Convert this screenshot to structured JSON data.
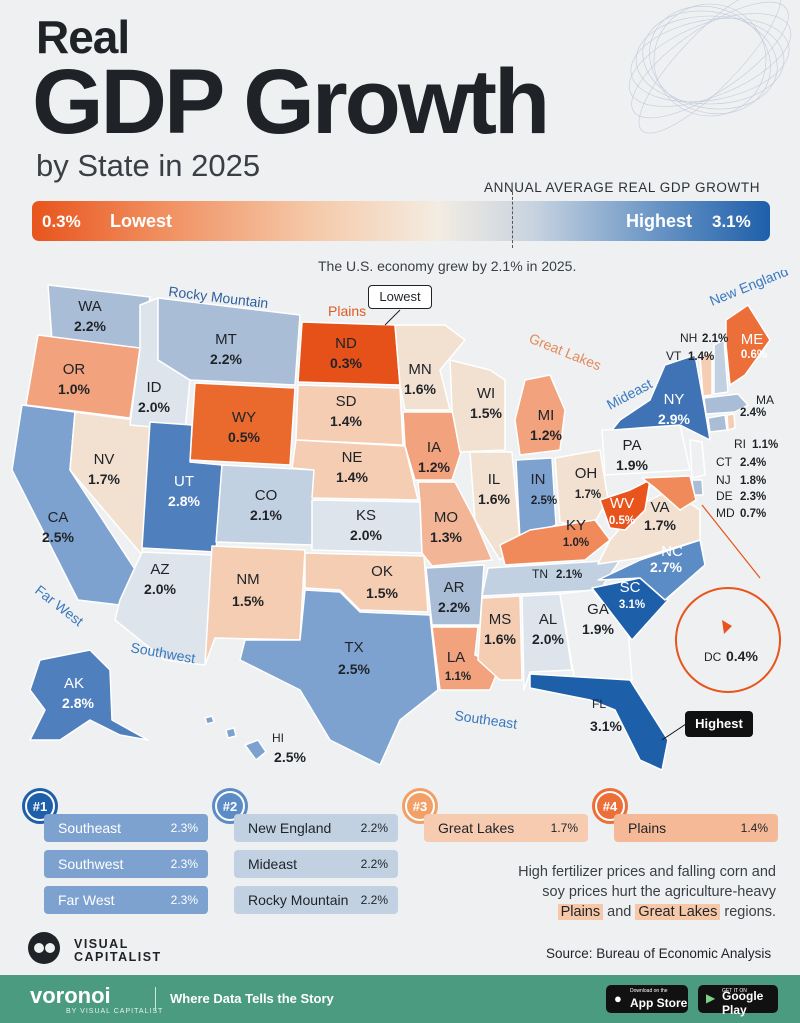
{
  "title": {
    "line1": "Real",
    "line2": "GDP Growth",
    "line3": "by State in 2025"
  },
  "legend": {
    "heading": "ANNUAL AVERAGE REAL GDP GROWTH",
    "low_value": "0.3%",
    "low_label": "Lowest",
    "high_label": "Highest",
    "high_value": "3.1%",
    "colors": {
      "low": "#e8541c",
      "mid": "#f4ece2",
      "high": "#1e5faa"
    }
  },
  "note_top": "The U.S. economy grew by 2.1% in 2025.",
  "callouts": {
    "lowest": "Lowest",
    "highest": "Highest"
  },
  "regions": {
    "rocky_mountain": "Rocky Mountain",
    "plains": "Plains",
    "great_lakes": "Great Lakes",
    "new_england": "New England",
    "mideast": "Mideast",
    "far_west": "Far West",
    "southwest": "Southwest",
    "southeast": "Southeast"
  },
  "states": {
    "WA": "2.2%",
    "OR": "1.0%",
    "CA": "2.5%",
    "NV": "1.7%",
    "ID": "2.0%",
    "MT": "2.2%",
    "WY": "0.5%",
    "UT": "2.8%",
    "CO": "2.1%",
    "AZ": "2.0%",
    "NM": "1.5%",
    "ND": "0.3%",
    "SD": "1.4%",
    "NE": "1.4%",
    "KS": "2.0%",
    "OK": "1.5%",
    "TX": "2.5%",
    "MN": "1.6%",
    "IA": "1.2%",
    "MO": "1.3%",
    "AR": "2.2%",
    "LA": "1.1%",
    "WI": "1.5%",
    "MI": "1.2%",
    "IL": "1.6%",
    "IN": "2.5%",
    "OH": "1.7%",
    "KY": "1.0%",
    "TN": "2.1%",
    "MS": "1.6%",
    "AL": "2.0%",
    "GA": "1.9%",
    "FL": "3.1%",
    "SC": "3.1%",
    "NC": "2.7%",
    "VA": "1.7%",
    "WV": "0.5%",
    "PA": "1.9%",
    "NY": "2.9%",
    "ME": "0.6%",
    "NH": "2.1%",
    "VT": "1.4%",
    "MA": "2.4%",
    "RI": "1.1%",
    "CT": "2.4%",
    "NJ": "1.8%",
    "DE": "2.3%",
    "MD": "0.7%",
    "DC": "0.4%",
    "AK": "2.8%",
    "HI": "2.5%"
  },
  "rankings": [
    {
      "rank": "#1",
      "color": "#1e5faa",
      "items": [
        {
          "name": "Southeast",
          "value": "2.3%"
        },
        {
          "name": "Southwest",
          "value": "2.3%"
        },
        {
          "name": "Far West",
          "value": "2.3%"
        }
      ]
    },
    {
      "rank": "#2",
      "color": "#5b8cc5",
      "items": [
        {
          "name": "New England",
          "value": "2.2%"
        },
        {
          "name": "Mideast",
          "value": "2.2%"
        },
        {
          "name": "Rocky Mountain",
          "value": "2.2%"
        }
      ]
    },
    {
      "rank": "#3",
      "color": "#f1a167",
      "items": [
        {
          "name": "Great Lakes",
          "value": "1.7%"
        }
      ]
    },
    {
      "rank": "#4",
      "color": "#ec6f3a",
      "items": [
        {
          "name": "Plains",
          "value": "1.4%"
        }
      ]
    }
  ],
  "note": {
    "text1": "High fertilizer prices and falling corn and",
    "text2": "soy prices hurt the agriculture-heavy",
    "hl1": "Plains",
    "and": "and",
    "hl2": "Great Lakes",
    "end": "regions."
  },
  "brand": {
    "vc1": "VISUAL",
    "vc2": "CAPITALIST",
    "source": "Source: Bureau of Economic Analysis"
  },
  "footer": {
    "brand": "voronoi",
    "brand_sub": "BY VISUAL CAPITALIST",
    "tagline": "Where Data Tells the Story",
    "appstore_small": "Download on the",
    "appstore": "App Store",
    "google_small": "GET IT ON",
    "google": "Google Play"
  }
}
